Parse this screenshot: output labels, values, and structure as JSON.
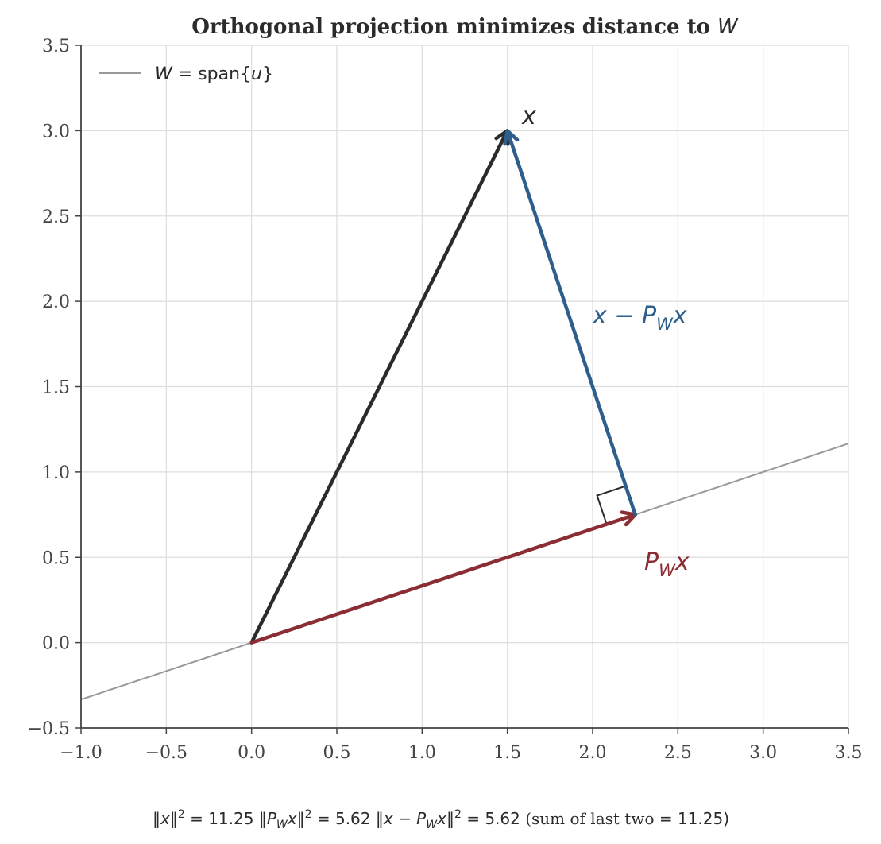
{
  "chart_data": {
    "type": "line",
    "title": "Orthogonal projection minimizes distance to W",
    "title_parts": {
      "text": "Orthogonal projection minimizes distance to ",
      "symbol": "W"
    },
    "xlabel": "",
    "ylabel": "",
    "xlim": [
      -1.0,
      3.5
    ],
    "ylim": [
      -0.5,
      3.5
    ],
    "xticks": [
      -1.0,
      -0.5,
      0.0,
      0.5,
      1.0,
      1.5,
      2.0,
      2.5,
      3.0,
      3.5
    ],
    "yticks": [
      -0.5,
      0.0,
      0.5,
      1.0,
      1.5,
      2.0,
      2.5,
      3.0,
      3.5
    ],
    "xtick_labels": [
      "−1.0",
      "−0.5",
      "0.0",
      "0.5",
      "1.0",
      "1.5",
      "2.0",
      "2.5",
      "3.0",
      "3.5"
    ],
    "ytick_labels": [
      "−0.5",
      "0.0",
      "0.5",
      "1.0",
      "1.5",
      "2.0",
      "2.5",
      "3.0",
      "3.5"
    ],
    "grid": true,
    "legend": {
      "placement": "top-left",
      "entries": [
        {
          "name": "W = span{u}",
          "color": "#999999"
        }
      ]
    },
    "subspace_line": {
      "name": "W = span{u}",
      "slope": 0.3333,
      "color": "#999999"
    },
    "vectors": [
      {
        "name": "x",
        "label": "x",
        "from": [
          0.0,
          0.0
        ],
        "to": [
          1.5,
          3.0
        ],
        "color": "#2b2b2b"
      },
      {
        "name": "P_W x",
        "label": "P_W x",
        "from": [
          0.0,
          0.0
        ],
        "to": [
          2.25,
          0.75
        ],
        "color": "#8b2e34"
      },
      {
        "name": "x - P_W x",
        "label": "x − P_W x",
        "from": [
          2.25,
          0.75
        ],
        "to": [
          1.5,
          3.0
        ],
        "color": "#2e5e8c"
      }
    ],
    "right_angle_marker_at": [
      2.25,
      0.75
    ],
    "norms": {
      "norm_x_sq": 11.25,
      "norm_proj_sq": 5.62,
      "norm_residual_sq": 5.62,
      "sum_last_two": 11.25
    }
  },
  "labels": {
    "x_label": "x",
    "proj_label_main": "P",
    "proj_label_sub": "W",
    "proj_label_tail": "x",
    "resid_label_head": "x − P",
    "resid_label_sub": "W",
    "resid_label_tail": "x",
    "legend_w": "W",
    "legend_eq": " = span{",
    "legend_u": "u",
    "legend_close": "}"
  },
  "footer": {
    "part1_open": "‖",
    "part1_var": "x",
    "part1_close": "‖",
    "sup": "2",
    "part1_val": " = 11.25  ",
    "part2_var_main": "P",
    "part2_var_sub": "W",
    "part2_var_tail": "x",
    "part2_val": " = 5.62  ",
    "part3_var_head": "x − P",
    "part3_var_sub": "W",
    "part3_var_tail": "x",
    "part3_val": " = 5.62  ",
    "sum_text": "(sum of last two ",
    "sum_val": " = 11.25)"
  },
  "colors": {
    "axis": "#444444",
    "grid": "#dddddd",
    "x_vector": "#2b2b2b",
    "projection": "#8b2e34",
    "residual": "#2e5e8c",
    "subspace": "#999999"
  }
}
